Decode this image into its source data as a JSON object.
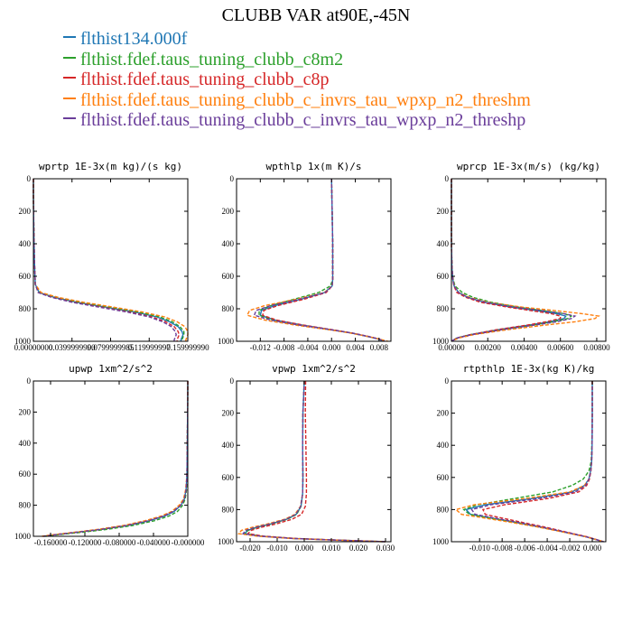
{
  "title": "CLUBB VAR at90E,-45N",
  "legend": [
    {
      "name": "flthist134.000f",
      "color": "#1f77b4"
    },
    {
      "name": "flthist.fdef.taus_tuning_clubb_c8m2",
      "color": "#2ca02c"
    },
    {
      "name": "flthist.fdef.taus_tuning_clubb_c8p",
      "color": "#d62728"
    },
    {
      "name": "flthist.fdef.taus_tuning_clubb_c_invrs_tau_wpxp_n2_threshm",
      "color": "#ff7f0e"
    },
    {
      "name": "flthist.fdef.taus_tuning_clubb_c_invrs_tau_wpxp_n2_threshp",
      "color": "#6a3d9a"
    }
  ],
  "chart_data": [
    {
      "type": "line",
      "title": "wprtp  1E-3x(m kg)/(s kg)",
      "xlim": [
        0.0,
        0.16
      ],
      "ylim": [
        1000,
        0
      ],
      "xticks": [
        0.0,
        0.04,
        0.08,
        0.12,
        0.16
      ],
      "xtick_labels": [
        "0.00000000",
        "0.0399999990",
        "0.0799999985",
        "0.119999997",
        "0.159999990"
      ],
      "yticks": [
        0,
        200,
        400,
        600,
        800,
        1000
      ],
      "y": [
        0,
        100,
        300,
        500,
        650,
        700,
        730,
        760,
        790,
        820,
        850,
        880,
        910,
        940,
        960,
        975,
        990,
        1000
      ],
      "series": [
        {
          "values": [
            0,
            0,
            0.0004,
            0.001,
            0.002,
            0.006,
            0.022,
            0.045,
            0.075,
            0.105,
            0.128,
            0.141,
            0.15,
            0.154,
            0.155,
            0.154,
            0.153,
            0.153
          ]
        },
        {
          "values": [
            0,
            0,
            0.0004,
            0.001,
            0.002,
            0.007,
            0.024,
            0.048,
            0.078,
            0.108,
            0.131,
            0.144,
            0.152,
            0.156,
            0.156,
            0.155,
            0.154,
            0.154
          ]
        },
        {
          "values": [
            0,
            0,
            0.0004,
            0.001,
            0.002,
            0.005,
            0.02,
            0.042,
            0.071,
            0.1,
            0.123,
            0.137,
            0.146,
            0.15,
            0.151,
            0.15,
            0.149,
            0.149
          ]
        },
        {
          "values": [
            0,
            0,
            0.0004,
            0.001,
            0.002,
            0.008,
            0.026,
            0.052,
            0.083,
            0.113,
            0.136,
            0.149,
            0.157,
            0.16,
            0.16,
            0.159,
            0.158,
            0.158
          ]
        },
        {
          "values": [
            0,
            0,
            0.0004,
            0.001,
            0.002,
            0.005,
            0.019,
            0.04,
            0.068,
            0.097,
            0.12,
            0.134,
            0.143,
            0.147,
            0.148,
            0.147,
            0.146,
            0.146
          ]
        }
      ]
    },
    {
      "type": "line",
      "title": "wpthlp  1x(m K)/s",
      "xlim": [
        -0.016,
        0.01
      ],
      "ylim": [
        1000,
        0
      ],
      "xticks": [
        -0.012,
        -0.008,
        -0.004,
        0.0,
        0.004,
        0.008
      ],
      "xtick_labels": [
        "-0.012",
        "-0.008",
        "-0.004",
        "0.000",
        "0.004",
        "0.008"
      ],
      "yticks": [
        0,
        200,
        400,
        600,
        800,
        1000
      ],
      "y": [
        0,
        200,
        400,
        550,
        620,
        660,
        700,
        740,
        780,
        810,
        840,
        870,
        900,
        930,
        950,
        970,
        985,
        1000
      ],
      "series": [
        {
          "values": [
            0,
            0.0001,
            0.0002,
            0.0002,
            0.0002,
            0.0001,
            -0.0012,
            -0.005,
            -0.0095,
            -0.0118,
            -0.012,
            -0.0095,
            -0.005,
            0.0002,
            0.0035,
            0.006,
            0.0078,
            0.0088
          ]
        },
        {
          "values": [
            0,
            0.0001,
            0.0002,
            0.0002,
            0.0002,
            -0.0002,
            -0.0022,
            -0.0062,
            -0.0102,
            -0.0122,
            -0.0122,
            -0.0097,
            -0.0052,
            0.0001,
            0.0034,
            0.006,
            0.0078,
            0.0088
          ]
        },
        {
          "values": [
            0,
            0.0001,
            0.0002,
            0.0002,
            0.0002,
            0.0001,
            -0.0009,
            -0.0045,
            -0.009,
            -0.0114,
            -0.0116,
            -0.0092,
            -0.0048,
            0.0003,
            0.0036,
            0.0062,
            0.0079,
            0.0089
          ]
        },
        {
          "values": [
            0,
            0.0001,
            0.0002,
            0.0002,
            0.0002,
            0.0001,
            -0.0012,
            -0.0058,
            -0.0112,
            -0.0138,
            -0.0142,
            -0.0112,
            -0.0062,
            -0.0002,
            0.0033,
            0.006,
            0.0079,
            0.0095
          ]
        },
        {
          "values": [
            0,
            0.0001,
            0.0002,
            0.0002,
            0.0002,
            0.0001,
            -0.0011,
            -0.0052,
            -0.0102,
            -0.0127,
            -0.013,
            -0.0102,
            -0.0055,
            0.0001,
            0.0035,
            0.0061,
            0.0078,
            0.009
          ]
        }
      ]
    },
    {
      "type": "line",
      "title": "wprcp  1E-3x(m/s) (kg/kg)",
      "xlim": [
        0.0,
        0.0085
      ],
      "ylim": [
        1000,
        0
      ],
      "xticks": [
        0.0,
        0.002,
        0.004,
        0.006,
        0.008
      ],
      "xtick_labels": [
        "0.00000",
        "0.00200",
        "0.00400",
        "0.00600",
        "0.00800"
      ],
      "yticks": [
        0,
        200,
        400,
        600,
        800,
        1000
      ],
      "y": [
        0,
        200,
        400,
        550,
        620,
        660,
        700,
        730,
        760,
        790,
        810,
        830,
        845,
        860,
        880,
        900,
        930,
        960,
        980,
        1000
      ],
      "series": [
        {
          "values": [
            0,
            0,
            0,
            3e-05,
            8e-05,
            0.00015,
            0.0004,
            0.0009,
            0.0018,
            0.0033,
            0.0046,
            0.0058,
            0.0063,
            0.0062,
            0.0054,
            0.0043,
            0.0025,
            0.001,
            0.0003,
            0
          ]
        },
        {
          "values": [
            0,
            0,
            0,
            3e-05,
            0.0001,
            0.0002,
            0.0006,
            0.0012,
            0.0022,
            0.0037,
            0.005,
            0.0062,
            0.0066,
            0.0064,
            0.0056,
            0.0045,
            0.0026,
            0.001,
            0.0003,
            0
          ]
        },
        {
          "values": [
            0,
            0,
            0,
            3e-05,
            8e-05,
            0.00014,
            0.0003,
            0.0008,
            0.0016,
            0.0031,
            0.0043,
            0.0055,
            0.006,
            0.006,
            0.0052,
            0.0042,
            0.0024,
            0.001,
            0.0003,
            0
          ]
        },
        {
          "values": [
            0,
            0,
            0,
            3e-05,
            8e-05,
            0.00016,
            0.0004,
            0.001,
            0.002,
            0.0039,
            0.0056,
            0.0072,
            0.0081,
            0.0079,
            0.0068,
            0.0052,
            0.003,
            0.0012,
            0.0004,
            0
          ]
        },
        {
          "values": [
            0,
            0,
            0,
            3e-05,
            8e-05,
            0.00015,
            0.0004,
            0.0009,
            0.0019,
            0.0035,
            0.0049,
            0.0062,
            0.0068,
            0.0066,
            0.0058,
            0.0046,
            0.0027,
            0.0011,
            0.0003,
            0
          ]
        }
      ]
    },
    {
      "type": "line",
      "title": "upwp  1xm^2/s^2",
      "xlim": [
        -0.18,
        0.0
      ],
      "ylim": [
        1000,
        0
      ],
      "xticks": [
        -0.16,
        -0.12,
        -0.08,
        -0.04,
        0.0
      ],
      "xtick_labels": [
        "-0.160000",
        "-0.120000",
        "-0.080000",
        "-0.040000",
        "-0.000000"
      ],
      "yticks": [
        0,
        200,
        400,
        600,
        800,
        1000
      ],
      "y": [
        0,
        200,
        400,
        600,
        700,
        760,
        800,
        840,
        870,
        900,
        930,
        955,
        975,
        990,
        1000
      ],
      "series": [
        {
          "values": [
            0,
            -0.0002,
            -0.0005,
            -0.001,
            -0.002,
            -0.004,
            -0.008,
            -0.016,
            -0.027,
            -0.045,
            -0.07,
            -0.1,
            -0.13,
            -0.155,
            -0.168
          ]
        },
        {
          "values": [
            0,
            -0.0002,
            -0.0005,
            -0.001,
            -0.0015,
            -0.003,
            -0.006,
            -0.012,
            -0.022,
            -0.039,
            -0.064,
            -0.094,
            -0.125,
            -0.152,
            -0.166
          ]
        },
        {
          "values": [
            0,
            -0.0002,
            -0.0005,
            -0.001,
            -0.002,
            -0.0045,
            -0.009,
            -0.018,
            -0.029,
            -0.047,
            -0.072,
            -0.102,
            -0.132,
            -0.156,
            -0.169
          ]
        },
        {
          "values": [
            0,
            -0.0002,
            -0.0005,
            -0.001,
            -0.0025,
            -0.005,
            -0.01,
            -0.019,
            -0.031,
            -0.05,
            -0.075,
            -0.105,
            -0.134,
            -0.158,
            -0.17
          ]
        },
        {
          "values": [
            0,
            -0.0002,
            -0.0005,
            -0.001,
            -0.002,
            -0.004,
            -0.008,
            -0.017,
            -0.028,
            -0.046,
            -0.071,
            -0.101,
            -0.131,
            -0.155,
            -0.168
          ]
        }
      ]
    },
    {
      "type": "line",
      "title": "vpwp  1xm^2/s^2",
      "xlim": [
        -0.025,
        0.032
      ],
      "ylim": [
        1000,
        0
      ],
      "xticks": [
        -0.02,
        -0.01,
        0.0,
        0.01,
        0.02,
        0.03
      ],
      "xtick_labels": [
        "-0.020",
        "-0.010",
        "0.000",
        "0.010",
        "0.020",
        "0.030"
      ],
      "yticks": [
        0,
        200,
        400,
        600,
        800,
        1000
      ],
      "y": [
        0,
        200,
        400,
        600,
        700,
        780,
        830,
        860,
        890,
        910,
        930,
        950,
        965,
        980,
        990,
        1000
      ],
      "series": [
        {
          "values": [
            0,
            -0.0005,
            -0.0006,
            -0.0005,
            -0.0006,
            -0.0012,
            -0.003,
            -0.0065,
            -0.0125,
            -0.0175,
            -0.021,
            -0.022,
            -0.016,
            -0.004,
            0.012,
            0.03
          ]
        },
        {
          "values": [
            0,
            -0.0005,
            -0.0006,
            -0.0005,
            -0.0006,
            -0.0012,
            -0.0028,
            -0.0062,
            -0.0122,
            -0.0172,
            -0.0208,
            -0.0218,
            -0.0158,
            -0.004,
            0.012,
            0.03
          ]
        },
        {
          "values": [
            0.0005,
            0.0004,
            0.0006,
            0.0008,
            0.0008,
            0.0004,
            -0.001,
            -0.0045,
            -0.0105,
            -0.0158,
            -0.0196,
            -0.0208,
            -0.015,
            -0.003,
            0.013,
            0.03
          ]
        },
        {
          "values": [
            0,
            -0.0005,
            -0.0006,
            -0.0005,
            -0.0006,
            -0.0014,
            -0.0035,
            -0.0072,
            -0.0138,
            -0.0192,
            -0.0232,
            -0.0242,
            -0.0175,
            -0.005,
            0.011,
            0.03
          ]
        },
        {
          "values": [
            0,
            -0.0005,
            -0.0006,
            -0.0005,
            -0.0006,
            -0.0013,
            -0.0031,
            -0.0067,
            -0.0128,
            -0.018,
            -0.0216,
            -0.0226,
            -0.0164,
            -0.0045,
            0.0115,
            0.03
          ]
        }
      ]
    },
    {
      "type": "line",
      "title": "rtpthlp  1E-3x(kg K)/kg",
      "xlim": [
        -0.0125,
        0.0012
      ],
      "ylim": [
        1000,
        0
      ],
      "xticks": [
        -0.01,
        -0.008,
        -0.006,
        -0.004,
        -0.002,
        0.0
      ],
      "xtick_labels": [
        "-0.010",
        "-0.008",
        "-0.006",
        "-0.004",
        "-0.002",
        "0.000"
      ],
      "yticks": [
        0,
        200,
        400,
        600,
        800,
        1000
      ],
      "y": [
        0,
        200,
        400,
        500,
        560,
        610,
        650,
        690,
        730,
        770,
        800,
        830,
        850,
        880,
        910,
        940,
        970,
        1000
      ],
      "series": [
        {
          "values": [
            0,
            0,
            -2e-05,
            -6e-05,
            -0.00015,
            -0.0003,
            -0.0007,
            -0.0018,
            -0.0052,
            -0.0095,
            -0.0112,
            -0.0108,
            -0.0092,
            -0.0068,
            -0.0045,
            -0.0025,
            -0.0005,
            0.001
          ]
        },
        {
          "values": [
            0,
            0,
            -4e-05,
            -0.0001,
            -0.0003,
            -0.0008,
            -0.0018,
            -0.0035,
            -0.0068,
            -0.0102,
            -0.0114,
            -0.0109,
            -0.0093,
            -0.0069,
            -0.0046,
            -0.0025,
            -0.0005,
            0.001
          ]
        },
        {
          "values": [
            0,
            0,
            -2e-05,
            -6e-05,
            -0.00012,
            -0.00025,
            -0.0005,
            -0.0012,
            -0.0038,
            -0.0078,
            -0.0097,
            -0.0095,
            -0.0082,
            -0.0062,
            -0.0041,
            -0.0023,
            -0.0004,
            0.001
          ]
        },
        {
          "values": [
            0,
            0,
            -2e-05,
            -6e-05,
            -0.00014,
            -0.0003,
            -0.0007,
            -0.002,
            -0.0058,
            -0.0105,
            -0.0121,
            -0.0116,
            -0.0098,
            -0.0072,
            -0.0047,
            -0.0026,
            -0.0005,
            0.001
          ]
        },
        {
          "values": [
            0,
            0,
            -2e-05,
            -6e-05,
            -0.00014,
            -0.0003,
            -0.0006,
            -0.0015,
            -0.0046,
            -0.009,
            -0.0107,
            -0.0104,
            -0.0089,
            -0.0066,
            -0.0044,
            -0.0024,
            -0.0005,
            0.001
          ]
        }
      ]
    }
  ]
}
